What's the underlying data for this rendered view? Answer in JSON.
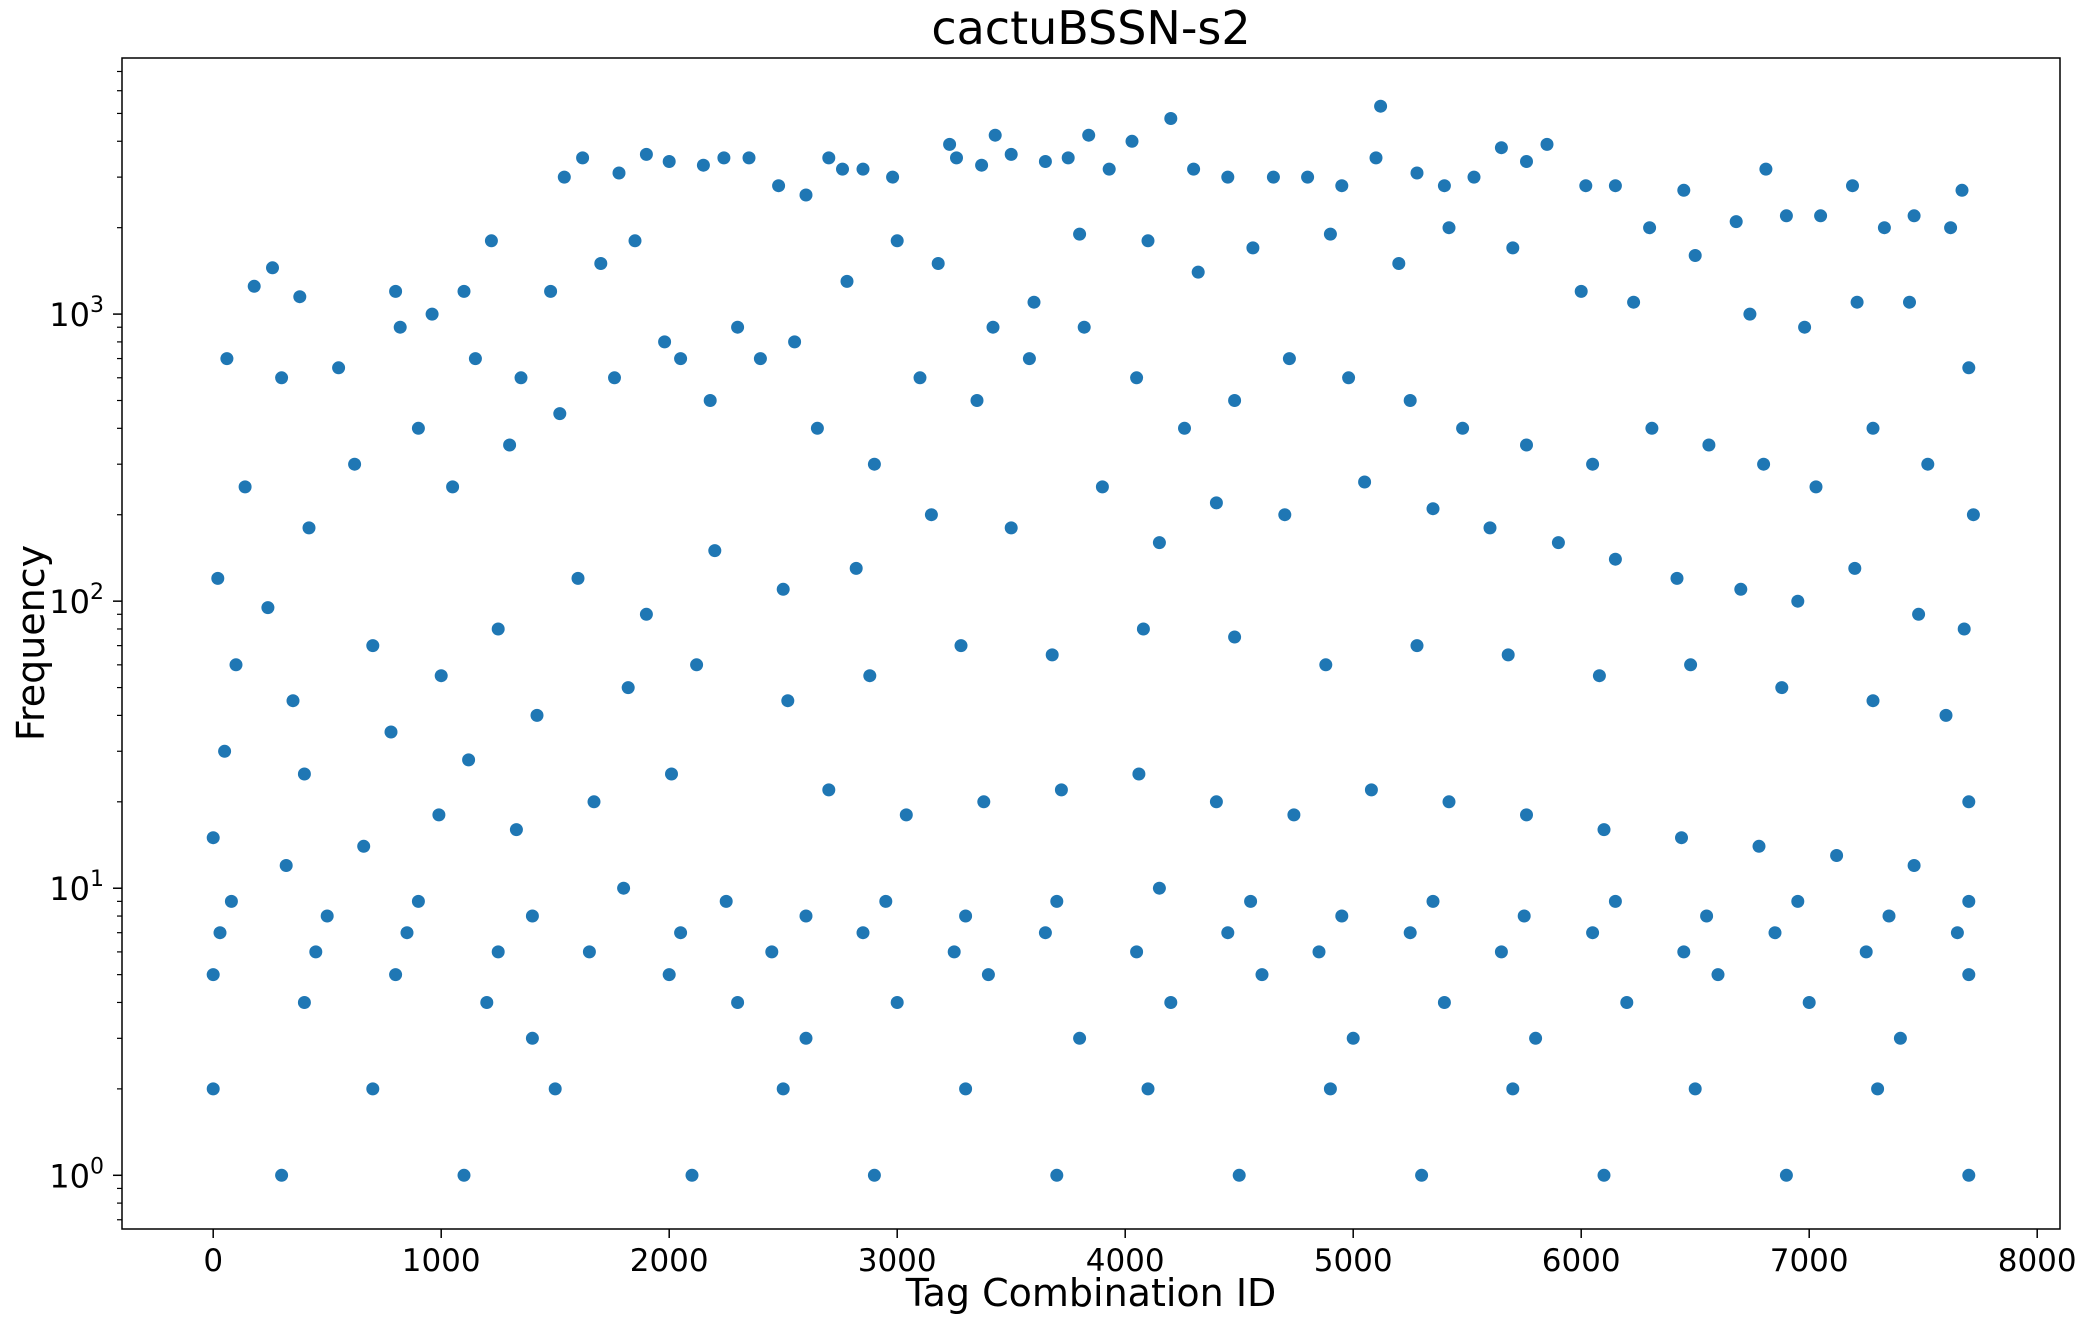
{
  "chart_data": {
    "type": "scatter",
    "title": "cactuBSSN-s2",
    "xlabel": "Tag Combination ID",
    "ylabel": "Frequency",
    "xlim": [
      -400,
      8100
    ],
    "ylim": [
      0.65,
      7800
    ],
    "yscale": "log",
    "grid": false,
    "marker_color": "#1f77b4",
    "x_ticks": [
      0,
      1000,
      2000,
      3000,
      4000,
      5000,
      6000,
      7000,
      8000
    ],
    "x_tick_labels": [
      "0",
      "1000",
      "2000",
      "3000",
      "4000",
      "5000",
      "6000",
      "7000",
      "8000"
    ],
    "y_ticks": [
      1,
      10,
      100,
      1000
    ],
    "y_tick_labels": [
      {
        "base": "10",
        "exp": "0"
      },
      {
        "base": "10",
        "exp": "1"
      },
      {
        "base": "10",
        "exp": "2"
      },
      {
        "base": "10",
        "exp": "3"
      }
    ],
    "points": {
      "x": [
        180,
        260,
        380,
        800,
        1100,
        1220,
        1540,
        1620,
        1780,
        1900,
        2000,
        2150,
        2240,
        2350,
        2480,
        2600,
        2700,
        2760,
        2850,
        2980,
        3230,
        3260,
        3370,
        3430,
        3500,
        3650,
        3750,
        3840,
        3930,
        4030,
        4200,
        4300,
        4450,
        4650,
        4800,
        4950,
        5100,
        5120,
        5280,
        5400,
        5530,
        5650,
        5760,
        5850,
        6020,
        6150,
        6300,
        6450,
        6680,
        6810,
        6900,
        7050,
        7190,
        7330,
        7460,
        7620,
        7670,
        60,
        300,
        550,
        820,
        960,
        1150,
        1350,
        1480,
        1700,
        1850,
        2050,
        2300,
        2550,
        2780,
        3000,
        3180,
        3420,
        3600,
        3800,
        4100,
        4320,
        4560,
        4900,
        5200,
        5420,
        5700,
        6000,
        6230,
        6500,
        6740,
        6980,
        7210,
        7440,
        7700,
        20,
        140,
        240,
        420,
        620,
        900,
        1050,
        1300,
        1520,
        1760,
        1980,
        2180,
        2400,
        2650,
        2900,
        3100,
        3350,
        3580,
        3820,
        4050,
        4260,
        4480,
        4720,
        4980,
        5250,
        5480,
        5760,
        6050,
        6310,
        6560,
        6800,
        7030,
        7280,
        7520,
        7720,
        100,
        350,
        700,
        1000,
        1250,
        1600,
        1900,
        2200,
        2500,
        2820,
        3150,
        3500,
        3900,
        4150,
        4400,
        4700,
        5050,
        5350,
        5600,
        5900,
        6150,
        6420,
        6700,
        6950,
        7200,
        7480,
        7680,
        50,
        400,
        780,
        1120,
        1420,
        1820,
        2120,
        2520,
        2880,
        3280,
        3680,
        4080,
        4480,
        4880,
        5280,
        5680,
        6080,
        6480,
        6880,
        7280,
        7600,
        0,
        320,
        660,
        990,
        1330,
        1670,
        2010,
        2700,
        3040,
        3380,
        3720,
        4060,
        4400,
        4740,
        5080,
        5420,
        5760,
        6100,
        6440,
        6780,
        7120,
        7460,
        7700,
        80,
        500,
        900,
        1400,
        1800,
        2250,
        2600,
        2950,
        3300,
        3700,
        4150,
        4550,
        4950,
        5350,
        5750,
        6150,
        6550,
        6950,
        7350,
        7700,
        30,
        450,
        850,
        1250,
        1650,
        2050,
        2450,
        2850,
        3250,
        3650,
        4050,
        4450,
        4850,
        5250,
        5650,
        6050,
        6450,
        6850,
        7250,
        7650,
        0,
        400,
        800,
        1200,
        1400,
        2000,
        2300,
        2600,
        3000,
        3400,
        3800,
        4200,
        4600,
        5000,
        5400,
        5800,
        6200,
        6600,
        7000,
        7400,
        7700,
        0,
        300,
        700,
        1100,
        1500,
        2100,
        2500,
        2900,
        3300,
        3700,
        4100,
        4500,
        4900,
        5300,
        5700,
        6100,
        6500,
        6900,
        7300,
        7700
      ],
      "y": [
        1250,
        1450,
        1150,
        1200,
        1200,
        1800,
        3000,
        3500,
        3100,
        3600,
        3400,
        3300,
        3500,
        3500,
        2800,
        2600,
        3500,
        3200,
        3200,
        3000,
        3900,
        3500,
        3300,
        4200,
        3600,
        3400,
        3500,
        4200,
        3200,
        4000,
        4800,
        3200,
        3000,
        3000,
        3000,
        2800,
        3500,
        5300,
        3100,
        2800,
        3000,
        3800,
        3400,
        3900,
        2800,
        2800,
        2000,
        2700,
        2100,
        3200,
        2200,
        2200,
        2800,
        2000,
        2200,
        2000,
        2700,
        700,
        600,
        650,
        900,
        1000,
        700,
        600,
        1200,
        1500,
        1800,
        700,
        900,
        800,
        1300,
        1800,
        1500,
        900,
        1100,
        1900,
        1800,
        1400,
        1700,
        1900,
        1500,
        2000,
        1700,
        1200,
        1100,
        1600,
        1000,
        900,
        1100,
        1100,
        650,
        120,
        250,
        95,
        180,
        300,
        400,
        250,
        350,
        450,
        600,
        800,
        500,
        700,
        400,
        300,
        600,
        500,
        700,
        900,
        600,
        400,
        500,
        700,
        600,
        500,
        400,
        350,
        300,
        400,
        350,
        300,
        250,
        400,
        300,
        200,
        60,
        45,
        70,
        55,
        80,
        120,
        90,
        150,
        110,
        130,
        200,
        180,
        250,
        160,
        220,
        200,
        260,
        210,
        180,
        160,
        140,
        120,
        110,
        100,
        130,
        90,
        80,
        30,
        25,
        35,
        28,
        40,
        50,
        60,
        45,
        55,
        70,
        65,
        80,
        75,
        60,
        70,
        65,
        55,
        60,
        50,
        45,
        40,
        15,
        12,
        14,
        18,
        16,
        20,
        25,
        22,
        18,
        20,
        22,
        25,
        20,
        18,
        22,
        20,
        18,
        16,
        15,
        14,
        13,
        12,
        20,
        9,
        8,
        9,
        8,
        10,
        9,
        8,
        9,
        8,
        9,
        10,
        9,
        8,
        9,
        8,
        9,
        8,
        9,
        8,
        9,
        7,
        6,
        7,
        6,
        6,
        7,
        6,
        7,
        6,
        7,
        6,
        7,
        6,
        7,
        6,
        7,
        6,
        7,
        6,
        7,
        5,
        4,
        5,
        4,
        3,
        5,
        4,
        3,
        4,
        5,
        3,
        4,
        5,
        3,
        4,
        3,
        4,
        5,
        4,
        3,
        5,
        2,
        1,
        2,
        1,
        2,
        1,
        2,
        1,
        2,
        1,
        2,
        1,
        2,
        1,
        2,
        1,
        2,
        1,
        2,
        1
      ]
    }
  }
}
